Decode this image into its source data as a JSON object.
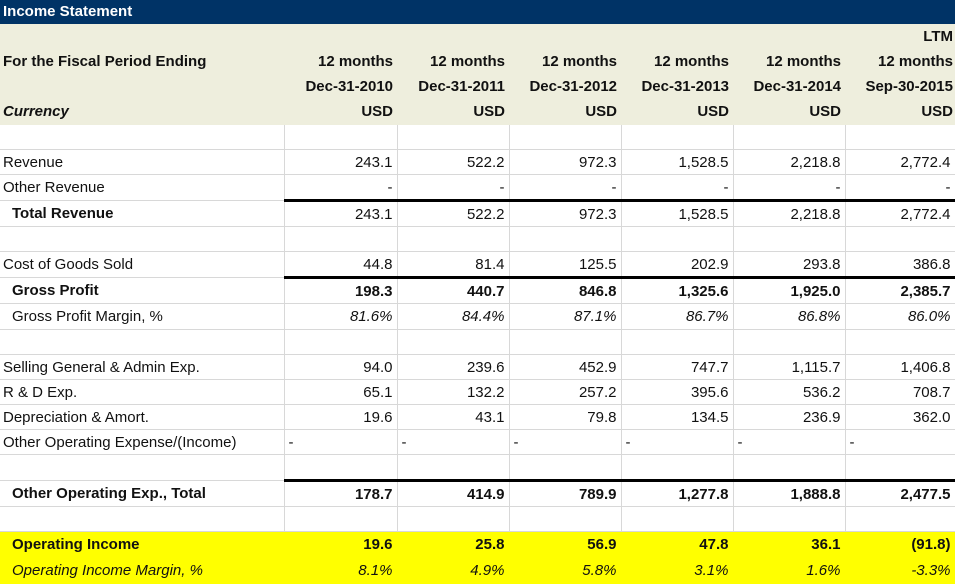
{
  "title": "Income Statement",
  "header": {
    "period_label": "For the Fiscal Period Ending",
    "currency_label": "Currency",
    "columns": [
      {
        "top": "",
        "period": "12 months",
        "date": "Dec-31-2010",
        "currency": "USD"
      },
      {
        "top": "",
        "period": "12 months",
        "date": "Dec-31-2011",
        "currency": "USD"
      },
      {
        "top": "",
        "period": "12 months",
        "date": "Dec-31-2012",
        "currency": "USD"
      },
      {
        "top": "",
        "period": "12 months",
        "date": "Dec-31-2013",
        "currency": "USD"
      },
      {
        "top": "",
        "period": "12 months",
        "date": "Dec-31-2014",
        "currency": "USD"
      },
      {
        "top": "LTM",
        "period": "12 months",
        "date": "Sep-30-2015",
        "currency": "USD"
      }
    ]
  },
  "highlight_color": "#ffff00",
  "rows": [
    {
      "style": "blank",
      "label": "",
      "values": [
        "",
        "",
        "",
        "",
        "",
        ""
      ]
    },
    {
      "style": "normal",
      "label": "Revenue",
      "values": [
        "243.1",
        "522.2",
        "972.3",
        "1,528.5",
        "2,218.8",
        "2,772.4"
      ]
    },
    {
      "style": "normal",
      "label": "Other Revenue",
      "values": [
        "-",
        "-",
        "-",
        "-",
        "-",
        "-"
      ]
    },
    {
      "style": "total",
      "label": "Total Revenue",
      "values": [
        "243.1",
        "522.2",
        "972.3",
        "1,528.5",
        "2,218.8",
        "2,772.4"
      ]
    },
    {
      "style": "blank",
      "label": "",
      "values": [
        "",
        "",
        "",
        "",
        "",
        ""
      ]
    },
    {
      "style": "normal",
      "label": "Cost of Goods Sold",
      "values": [
        "44.8",
        "81.4",
        "125.5",
        "202.9",
        "293.8",
        "386.8"
      ]
    },
    {
      "style": "total-bold",
      "label": "Gross Profit",
      "values": [
        "198.3",
        "440.7",
        "846.8",
        "1,325.6",
        "1,925.0",
        "2,385.7"
      ]
    },
    {
      "style": "italic-ind",
      "label": "Gross Profit Margin, %",
      "values": [
        "81.6%",
        "84.4%",
        "87.1%",
        "86.7%",
        "86.8%",
        "86.0%"
      ]
    },
    {
      "style": "blank",
      "label": "",
      "values": [
        "",
        "",
        "",
        "",
        "",
        ""
      ]
    },
    {
      "style": "normal",
      "label": "Selling General & Admin Exp.",
      "values": [
        "94.0",
        "239.6",
        "452.9",
        "747.7",
        "1,115.7",
        "1,406.8"
      ]
    },
    {
      "style": "normal",
      "label": "R & D Exp.",
      "values": [
        "65.1",
        "132.2",
        "257.2",
        "395.6",
        "536.2",
        "708.7"
      ]
    },
    {
      "style": "normal",
      "label": "Depreciation & Amort.",
      "values": [
        "19.6",
        "43.1",
        "79.8",
        "134.5",
        "236.9",
        "362.0"
      ]
    },
    {
      "style": "dash-left",
      "label": "Other Operating Expense/(Income)",
      "values": [
        "-",
        "-",
        "-",
        "-",
        "-",
        "-"
      ]
    },
    {
      "style": "blank",
      "label": "",
      "values": [
        "",
        "",
        "",
        "",
        "",
        ""
      ]
    },
    {
      "style": "total-bold",
      "label": "Other Operating Exp., Total",
      "values": [
        "178.7",
        "414.9",
        "789.9",
        "1,277.8",
        "1,888.8",
        "2,477.5"
      ]
    },
    {
      "style": "blank",
      "label": "",
      "values": [
        "",
        "",
        "",
        "",
        "",
        ""
      ]
    },
    {
      "style": "hl-bold",
      "label": "Operating Income",
      "values": [
        "19.6",
        "25.8",
        "56.9",
        "47.8",
        "36.1",
        "(91.8)"
      ]
    },
    {
      "style": "hl-italic",
      "label": "Operating Income Margin, %",
      "values": [
        "8.1%",
        "4.9%",
        "5.8%",
        "3.1%",
        "1.6%",
        "-3.3%"
      ]
    }
  ]
}
